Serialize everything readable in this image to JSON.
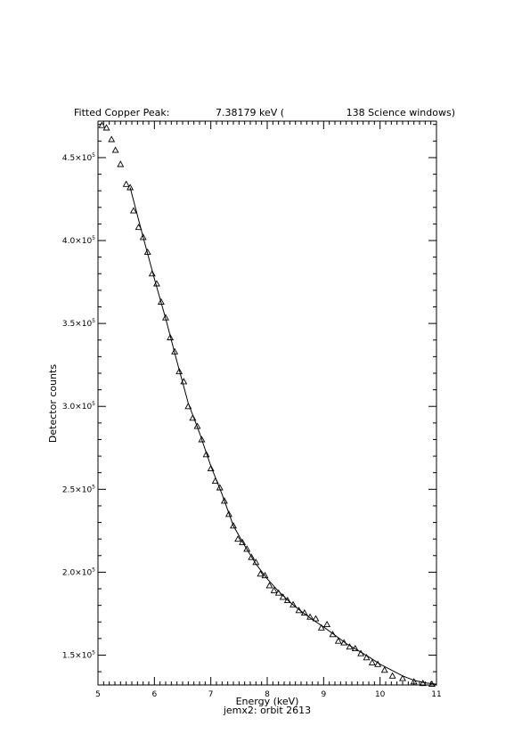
{
  "chart_data": {
    "type": "scatter",
    "title": {
      "prefix": "Fitted Copper Peak:",
      "energy_text": "7.38179 keV (",
      "windows_text": "138 Science windows)"
    },
    "caption": "jemx2: orbit 2613",
    "xlabel": "Energy (keV)",
    "ylabel": "Detector counts",
    "xlim": [
      5,
      11
    ],
    "ylim": [
      132000,
      472000
    ],
    "x_ticks": [
      5,
      6,
      7,
      8,
      9,
      10,
      11
    ],
    "x_tick_labels": [
      "5",
      "6",
      "7",
      "8",
      "9",
      "10",
      "11"
    ],
    "y_ticks": [
      150000,
      200000,
      250000,
      300000,
      350000,
      400000,
      450000
    ],
    "y_tick_labels": [
      {
        "mantissa": "1.5×10",
        "exponent": "5"
      },
      {
        "mantissa": "2.0×10",
        "exponent": "5"
      },
      {
        "mantissa": "2.5×10",
        "exponent": "5"
      },
      {
        "mantissa": "3.0×10",
        "exponent": "5"
      },
      {
        "mantissa": "3.5×10",
        "exponent": "5"
      },
      {
        "mantissa": "4.0×10",
        "exponent": "5"
      },
      {
        "mantissa": "4.5×10",
        "exponent": "5"
      }
    ],
    "grid": false,
    "series": [
      {
        "marker": "triangle",
        "points": [
          [
            5.07,
            469500
          ],
          [
            5.15,
            468000
          ],
          [
            5.24,
            461000
          ],
          [
            5.31,
            454500
          ],
          [
            5.4,
            446000
          ],
          [
            5.5,
            434000
          ],
          [
            5.57,
            432000
          ],
          [
            5.63,
            418000
          ],
          [
            5.72,
            408000
          ],
          [
            5.8,
            402000
          ],
          [
            5.88,
            393000
          ],
          [
            5.96,
            380000
          ],
          [
            6.04,
            374000
          ],
          [
            6.12,
            363000
          ],
          [
            6.2,
            353500
          ],
          [
            6.28,
            341500
          ],
          [
            6.36,
            333000
          ],
          [
            6.44,
            321000
          ],
          [
            6.52,
            315000
          ],
          [
            6.6,
            300000
          ],
          [
            6.68,
            293000
          ],
          [
            6.76,
            288000
          ],
          [
            6.84,
            280000
          ],
          [
            6.92,
            271000
          ],
          [
            7.0,
            262500
          ],
          [
            7.08,
            255000
          ],
          [
            7.16,
            251000
          ],
          [
            7.24,
            243000
          ],
          [
            7.32,
            235000
          ],
          [
            7.4,
            228000
          ],
          [
            7.48,
            220000
          ],
          [
            7.56,
            218000
          ],
          [
            7.64,
            214000
          ],
          [
            7.72,
            209000
          ],
          [
            7.8,
            206000
          ],
          [
            7.88,
            199000
          ],
          [
            7.96,
            198000
          ],
          [
            8.04,
            192000
          ],
          [
            8.12,
            189000
          ],
          [
            8.2,
            187500
          ],
          [
            8.28,
            185000
          ],
          [
            8.36,
            183000
          ],
          [
            8.46,
            180500
          ],
          [
            8.56,
            177000
          ],
          [
            8.66,
            175500
          ],
          [
            8.76,
            173000
          ],
          [
            8.86,
            172000
          ],
          [
            8.96,
            166500
          ],
          [
            9.06,
            168500
          ],
          [
            9.16,
            162500
          ],
          [
            9.26,
            158500
          ],
          [
            9.36,
            157500
          ],
          [
            9.46,
            155000
          ],
          [
            9.56,
            154000
          ],
          [
            9.66,
            151000
          ],
          [
            9.76,
            148500
          ],
          [
            9.86,
            145500
          ],
          [
            9.96,
            144500
          ],
          [
            10.08,
            141000
          ],
          [
            10.22,
            137500
          ],
          [
            10.4,
            136000
          ],
          [
            10.6,
            134000
          ],
          [
            10.76,
            133000
          ],
          [
            10.92,
            132500
          ]
        ]
      }
    ],
    "fit_curve": [
      [
        5.57,
        432000
      ],
      [
        5.8,
        402000
      ],
      [
        6.0,
        377000
      ],
      [
        6.2,
        353000
      ],
      [
        6.4,
        327000
      ],
      [
        6.6,
        302000
      ],
      [
        6.8,
        284000
      ],
      [
        7.0,
        264000
      ],
      [
        7.2,
        247000
      ],
      [
        7.4,
        228000
      ],
      [
        7.6,
        216000
      ],
      [
        7.8,
        205000
      ],
      [
        8.0,
        196000
      ],
      [
        8.2,
        188500
      ],
      [
        8.4,
        182000
      ],
      [
        8.6,
        176500
      ],
      [
        8.8,
        171500
      ],
      [
        9.0,
        167000
      ],
      [
        9.2,
        162000
      ],
      [
        9.4,
        157000
      ],
      [
        9.6,
        153000
      ],
      [
        9.8,
        149000
      ],
      [
        10.0,
        144500
      ],
      [
        10.2,
        141000
      ],
      [
        10.4,
        137500
      ],
      [
        10.6,
        134800
      ],
      [
        10.8,
        133300
      ],
      [
        11.0,
        132500
      ]
    ]
  }
}
